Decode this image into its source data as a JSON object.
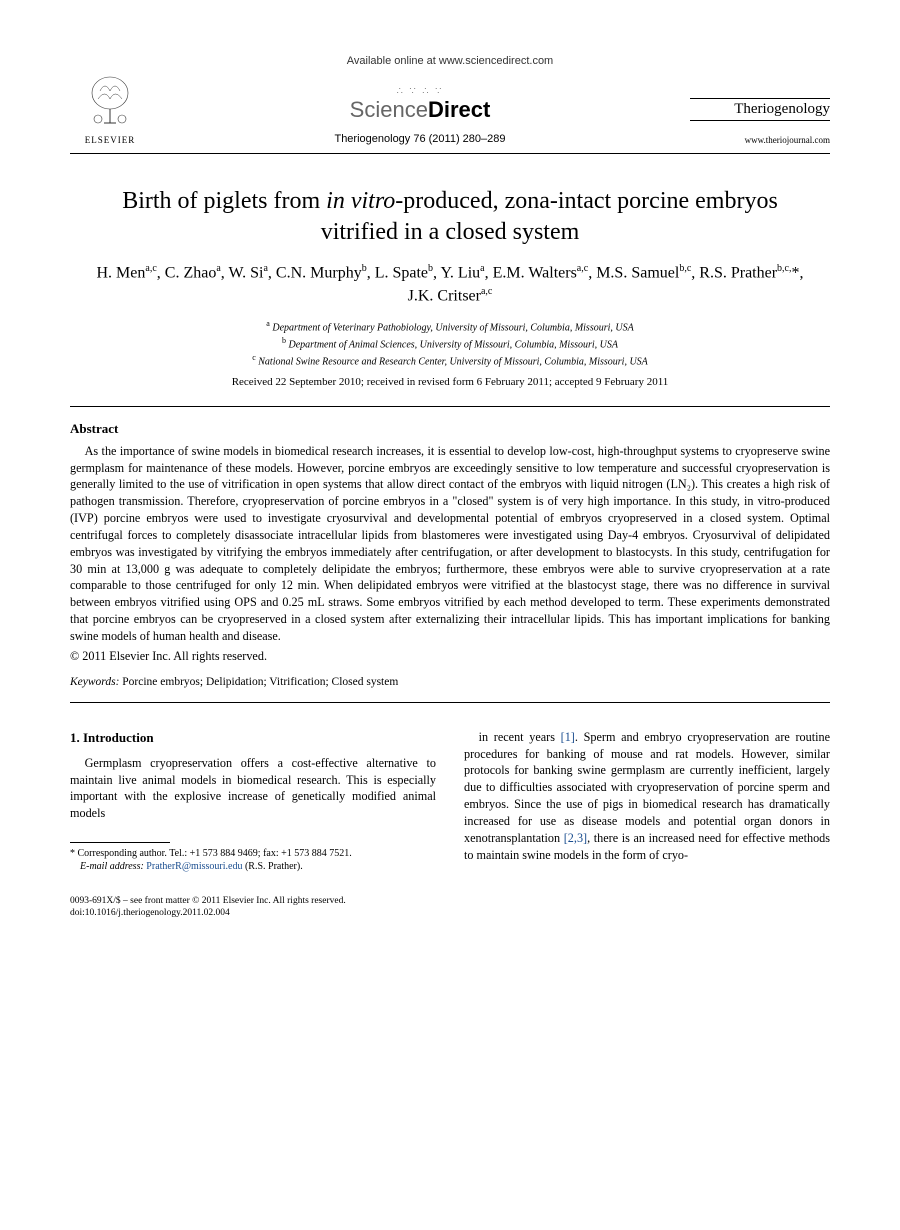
{
  "banner": "Available online at www.sciencedirect.com",
  "sd_logo": {
    "sci": "Science",
    "dir": "Direct"
  },
  "elsevier": "ELSEVIER",
  "journal_ref": "Theriogenology 76 (2011) 280–289",
  "journal_name": "Theriogenology",
  "journal_url": "www.theriojournal.com",
  "title_pre": "Birth of piglets from ",
  "title_ital": "in vitro",
  "title_post": "-produced, zona-intact porcine embryos vitrified in a closed system",
  "authors_html": "H. Men<sup>a,c</sup>, C. Zhao<sup>a</sup>, W. Si<sup>a</sup>, C.N. Murphy<sup>b</sup>, L. Spate<sup>b</sup>, Y. Liu<sup>a</sup>, E.M. Walters<sup>a,c</sup>, M.S. Samuel<sup>b,c</sup>, R.S. Prather<sup>b,c,</sup>*, J.K. Critser<sup>a,c</sup>",
  "affiliations": {
    "a": "Department of Veterinary Pathobiology, University of Missouri, Columbia, Missouri, USA",
    "b": "Department of Animal Sciences, University of Missouri, Columbia, Missouri, USA",
    "c": "National Swine Resource and Research Center, University of Missouri, Columbia, Missouri, USA"
  },
  "dates": "Received 22 September 2010; received in revised form 6 February 2011; accepted 9 February 2011",
  "abstract_head": "Abstract",
  "abstract_body": "As the importance of swine models in biomedical research increases, it is essential to develop low-cost, high-throughput systems to cryopreserve swine germplasm for maintenance of these models. However, porcine embryos are exceedingly sensitive to low temperature and successful cryopreservation is generally limited to the use of vitrification in open systems that allow direct contact of the embryos with liquid nitrogen (LN₂). This creates a high risk of pathogen transmission. Therefore, cryopreservation of porcine embryos in a \"closed\" system is of very high importance. In this study, in vitro-produced (IVP) porcine embryos were used to investigate cryosurvival and developmental potential of embryos cryopreserved in a closed system. Optimal centrifugal forces to completely disassociate intracellular lipids from blastomeres were investigated using Day-4 embryos. Cryosurvival of delipidated embryos was investigated by vitrifying the embryos immediately after centrifugation, or after development to blastocysts. In this study, centrifugation for 30 min at 13,000 g was adequate to completely delipidate the embryos; furthermore, these embryos were able to survive cryopreservation at a rate comparable to those centrifuged for only 12 min. When delipidated embryos were vitrified at the blastocyst stage, there was no difference in survival between embryos vitrified using OPS and 0.25 mL straws. Some embryos vitrified by each method developed to term. These experiments demonstrated that porcine embryos can be cryopreserved in a closed system after externalizing their intracellular lipids. This has important implications for banking swine models of human health and disease.",
  "copyright": "© 2011 Elsevier Inc. All rights reserved.",
  "keywords_label": "Keywords:",
  "keywords": "Porcine embryos; Delipidation; Vitrification; Closed system",
  "section1_head": "1. Introduction",
  "col_left": "Germplasm cryopreservation offers a cost-effective alternative to maintain live animal models in biomedical research. This is especially important with the explosive increase of genetically modified animal models",
  "col_right_1": "in recent years ",
  "ref1": "[1]",
  "col_right_2": ". Sperm and embryo cryopreservation are routine procedures for banking of mouse and rat models. However, similar protocols for banking swine germplasm are currently inefficient, largely due to difficulties associated with cryopreservation of porcine sperm and embryos. Since the use of pigs in biomedical research has dramatically increased for use as disease models and potential organ donors in xenotransplantation ",
  "ref23": "[2,3]",
  "col_right_3": ", there is an increased need for effective methods to maintain swine models in the form of cryo-",
  "footnote_corr": "* Corresponding author. Tel.: +1 573 884 9469; fax: +1 573 884 7521.",
  "footnote_email_label": "E-mail address:",
  "footnote_email": "PratherR@missouri.edu",
  "footnote_email_tail": "(R.S. Prather).",
  "bottom_left_1": "0093-691X/$ – see front matter © 2011 Elsevier Inc. All rights reserved.",
  "bottom_left_2": "doi:10.1016/j.theriogenology.2011.02.004"
}
